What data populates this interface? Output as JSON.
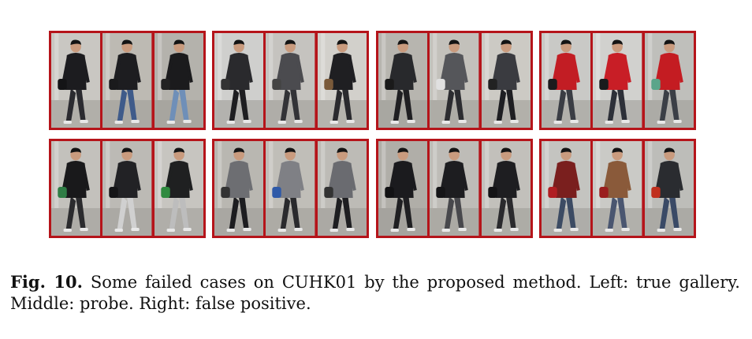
{
  "figure": {
    "rows": [
      [
        {
          "group": 1,
          "images": [
            {
              "role": "true-gallery",
              "shirt": "#1c1c1f",
              "pants": "#2b2b30",
              "bag": "#141416",
              "bg": "#c9c7c2"
            },
            {
              "role": "probe",
              "shirt": "#1d1d20",
              "pants": "#3f5b8a",
              "bag": "#1a1a1c",
              "bg": "#bdbab3"
            },
            {
              "role": "false-positive",
              "shirt": "#1b1b1d",
              "pants": "#6f8fb8",
              "bag": "#222",
              "bg": "#b4b2ac"
            }
          ]
        },
        {
          "group": 2,
          "images": [
            {
              "role": "true-gallery",
              "shirt": "#2a2a2d",
              "pants": "#1e1e21",
              "bag": "#333",
              "bg": "#cfcfcd"
            },
            {
              "role": "probe",
              "shirt": "#4b4b4f",
              "pants": "#333337",
              "bag": "#444",
              "bg": "#c5c3bf"
            },
            {
              "role": "false-positive",
              "shirt": "#1f1f22",
              "pants": "#2a2a2e",
              "bag": "#7a5a3a",
              "bg": "#d2d0cb"
            }
          ]
        },
        {
          "group": 3,
          "images": [
            {
              "role": "true-gallery",
              "shirt": "#28292c",
              "pants": "#1f1f22",
              "bag": "#1a1a1a",
              "bg": "#b7b5af"
            },
            {
              "role": "probe",
              "shirt": "#55565a",
              "pants": "#2c2c30",
              "bag": "#e0e0e0",
              "bg": "#c3c1bb"
            },
            {
              "role": "false-positive",
              "shirt": "#3a3b40",
              "pants": "#1e1e22",
              "bag": "#222",
              "bg": "#cccac4"
            }
          ]
        },
        {
          "group": 4,
          "images": [
            {
              "role": "true-gallery",
              "shirt": "#c21d24",
              "pants": "#3a3d44",
              "bag": "#1b1b1d",
              "bg": "#c9c9c6"
            },
            {
              "role": "probe",
              "shirt": "#c81e26",
              "pants": "#2d3038",
              "bag": "#1b1b1d",
              "bg": "#d1d1ce"
            },
            {
              "role": "false-positive",
              "shirt": "#c41c22",
              "pants": "#3b3f46",
              "bag": "#5aa58a",
              "bg": "#bfbfbb"
            }
          ]
        }
      ],
      [
        {
          "group": 5,
          "images": [
            {
              "role": "true-gallery",
              "shirt": "#19191b",
              "pants": "#2b2b2e",
              "bag": "#2f7d45",
              "bg": "#c3c1bc"
            },
            {
              "role": "probe",
              "shirt": "#222225",
              "pants": "#d0d0d0",
              "bag": "#151517",
              "bg": "#bcbab5"
            },
            {
              "role": "false-positive",
              "shirt": "#1f2021",
              "pants": "#bdbdbd",
              "bag": "#2f8a3f",
              "bg": "#c7c5c0"
            }
          ]
        },
        {
          "group": 6,
          "images": [
            {
              "role": "true-gallery",
              "shirt": "#6d6e72",
              "pants": "#1d1d20",
              "bag": "#333",
              "bg": "#b9b7b1"
            },
            {
              "role": "probe",
              "shirt": "#7f8085",
              "pants": "#2a2a2d",
              "bag": "#2f5aa8",
              "bg": "#c0beb8"
            },
            {
              "role": "false-positive",
              "shirt": "#6a6b70",
              "pants": "#1e1e21",
              "bag": "#333",
              "bg": "#bdbbb6"
            }
          ]
        },
        {
          "group": 7,
          "images": [
            {
              "role": "true-gallery",
              "shirt": "#1b1b1e",
              "pants": "#1f1f22",
              "bag": "#121214",
              "bg": "#b0aea8"
            },
            {
              "role": "probe",
              "shirt": "#1d1d20",
              "pants": "#48484c",
              "bag": "#151517",
              "bg": "#bebcb7"
            },
            {
              "role": "false-positive",
              "shirt": "#1e1e21",
              "pants": "#2a2a2d",
              "bag": "#141416",
              "bg": "#c2c0bb"
            }
          ]
        },
        {
          "group": 8,
          "images": [
            {
              "role": "true-gallery",
              "shirt": "#7a1f1e",
              "pants": "#3c4b63",
              "bag": "#b01e22",
              "bg": "#c4c4c0"
            },
            {
              "role": "probe",
              "shirt": "#8a5a3a",
              "pants": "#4a5670",
              "bag": "#9a1e1e",
              "bg": "#cacac6"
            },
            {
              "role": "false-positive",
              "shirt": "#2a2c30",
              "pants": "#3a4a66",
              "bag": "#c0301e",
              "bg": "#bdbdb9"
            }
          ]
        }
      ]
    ]
  },
  "caption": {
    "label": "Fig. 10.",
    "text": "Some failed cases on CUHK01 by the proposed method. Left: true gallery. Middle: probe. Right: false positive."
  }
}
